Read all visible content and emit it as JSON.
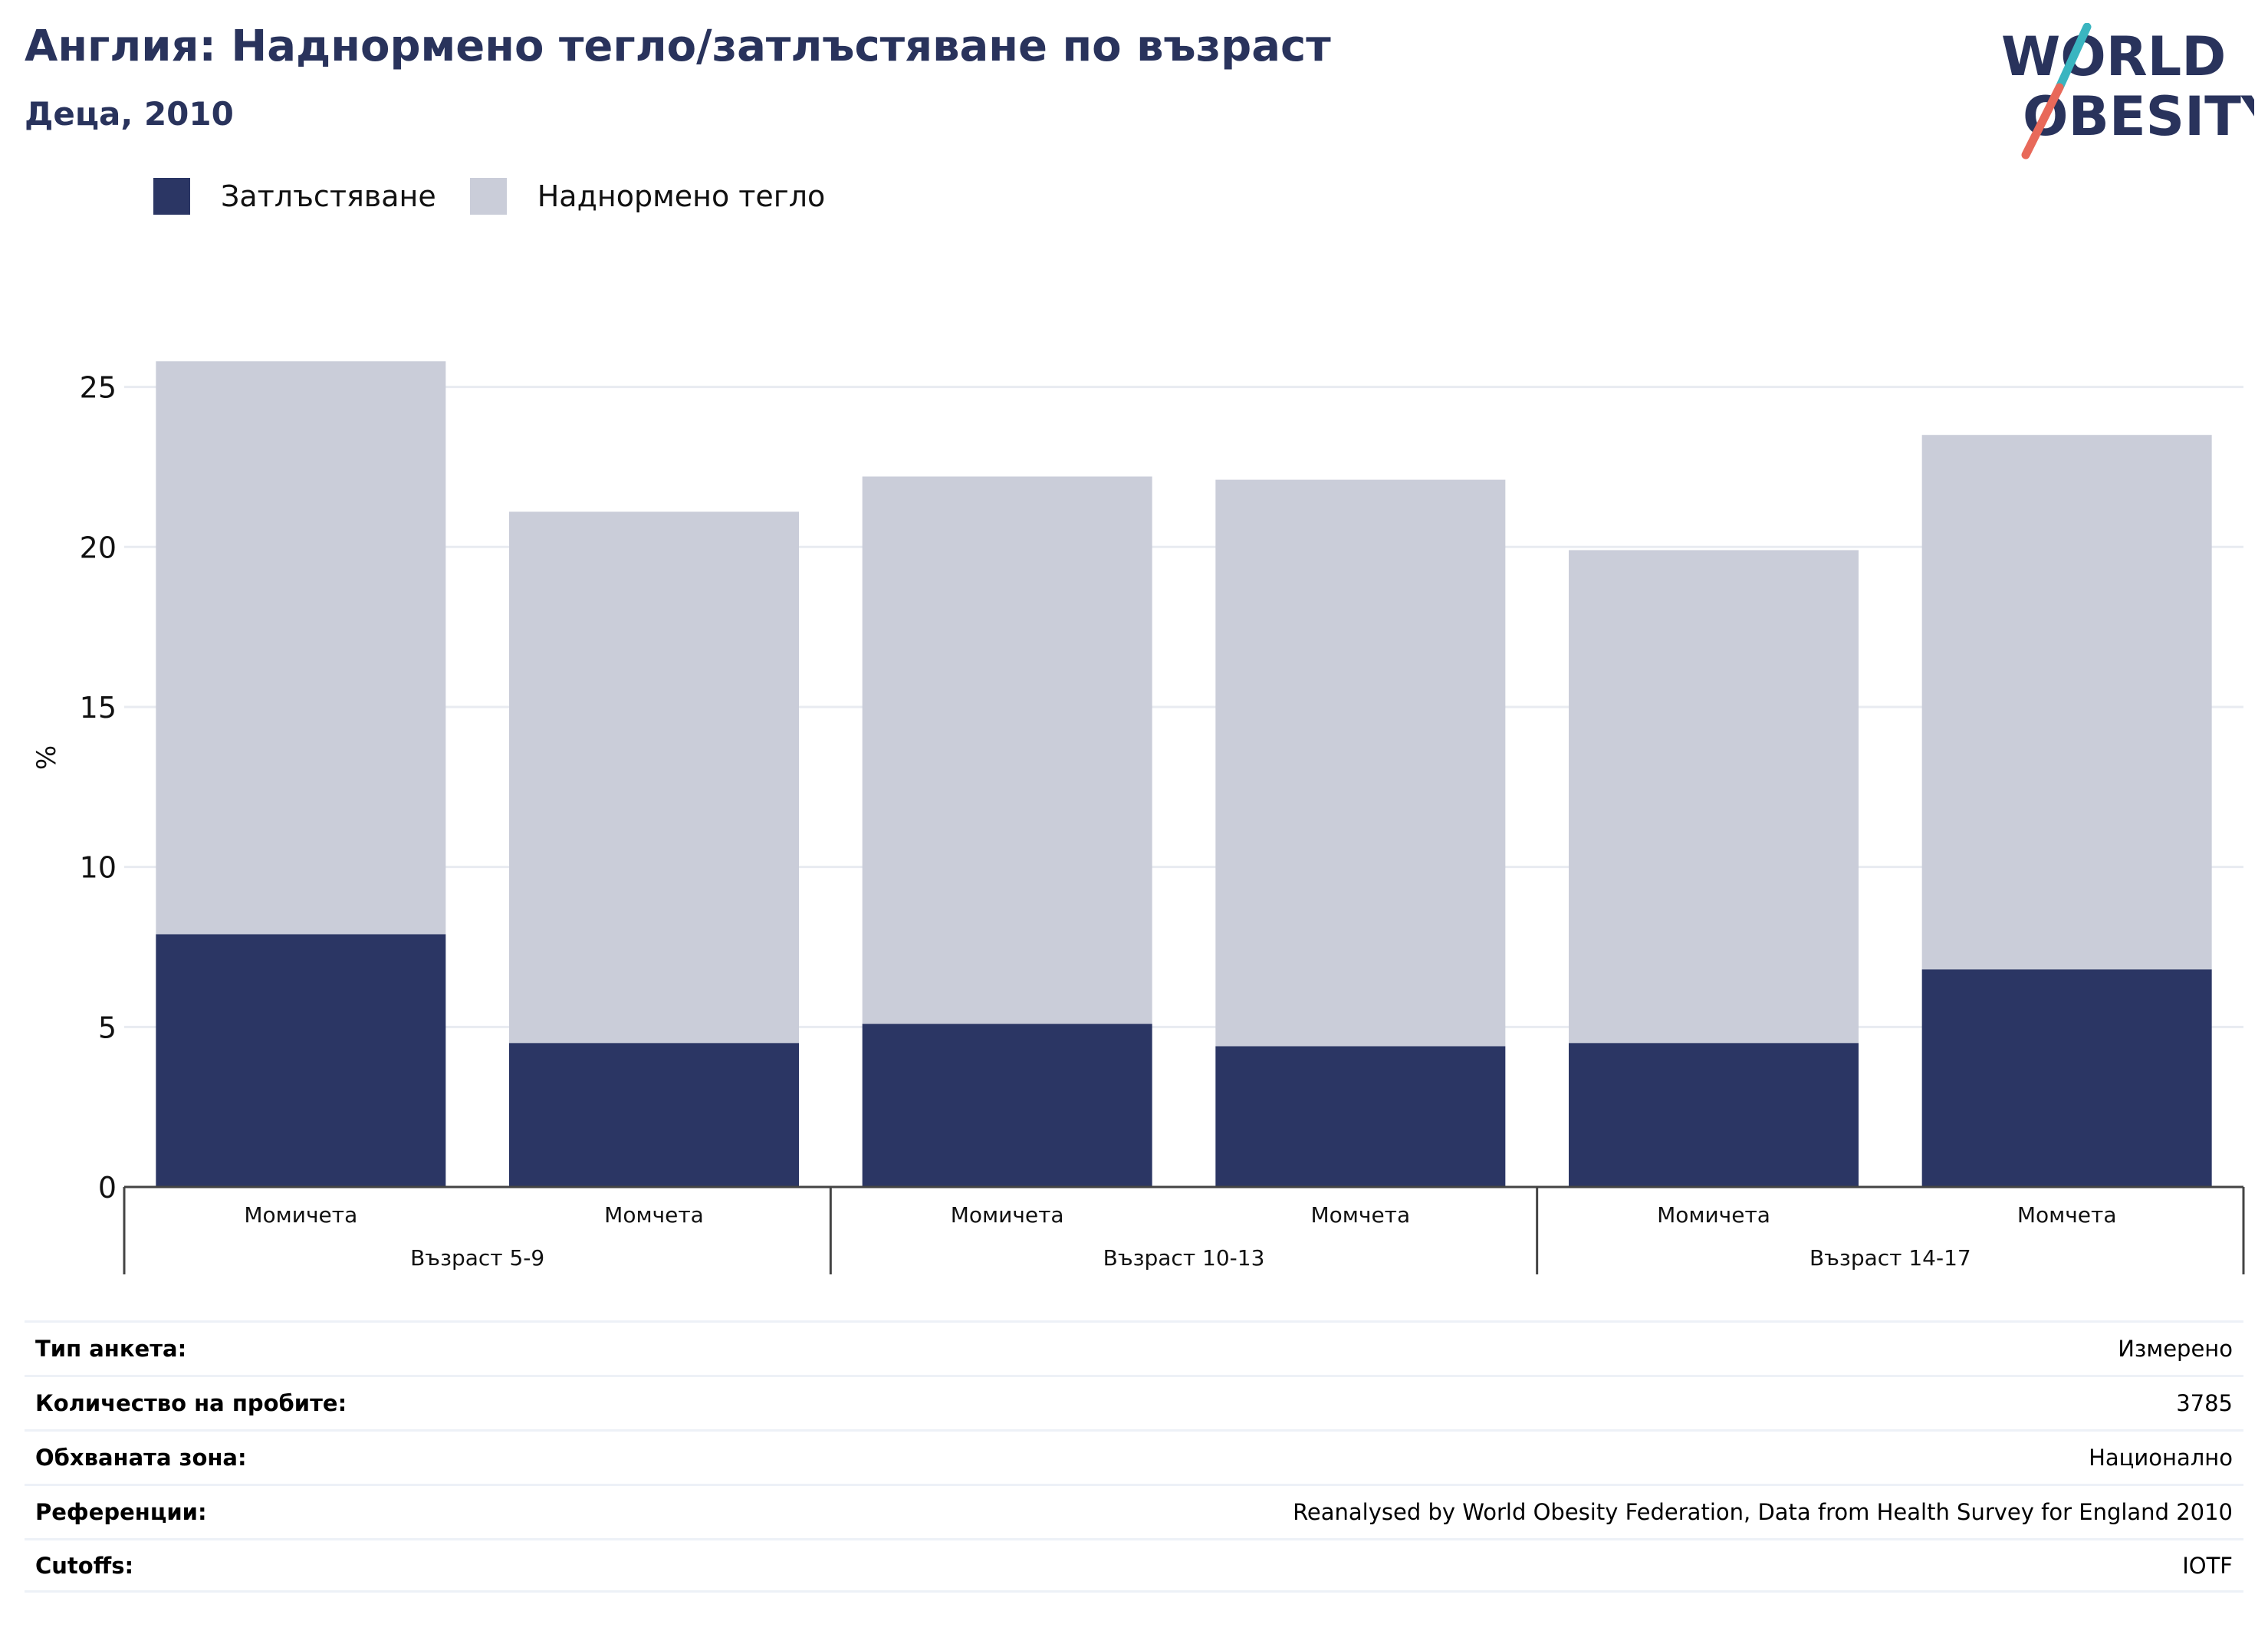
{
  "header": {
    "title": "Англия: Наднормено тегло/затлъстяване по възраст",
    "subtitle": "Деца, 2010"
  },
  "logo": {
    "line1": "WORLD",
    "line2": "OBESITY",
    "colors": {
      "text": "#29335c",
      "slash_top": "#3ab5c0",
      "slash_bottom": "#e8695a"
    }
  },
  "legend": [
    {
      "label": "Затлъстяване",
      "color": "#2b3664"
    },
    {
      "label": "Наднормено тегло",
      "color": "#cacdd9"
    }
  ],
  "chart_data": {
    "type": "bar",
    "stacked": true,
    "ylabel": "%",
    "ylim": [
      0,
      26.5
    ],
    "yticks": [
      0,
      5,
      10,
      15,
      20,
      25
    ],
    "grid": true,
    "legend_position": "top-left",
    "categories": [
      "Момичета",
      "Момчета",
      "Момичета",
      "Момчета",
      "Момичета",
      "Момчета"
    ],
    "groups": [
      {
        "label": "Възраст 5-9",
        "categories": [
          0,
          1
        ]
      },
      {
        "label": "Възраст 10-13",
        "categories": [
          2,
          3
        ]
      },
      {
        "label": "Възраст 14-17",
        "categories": [
          4,
          5
        ]
      }
    ],
    "series": [
      {
        "name": "Затлъстяване",
        "color": "#2b3664",
        "values": [
          7.9,
          4.5,
          5.1,
          4.4,
          4.5,
          6.8
        ]
      },
      {
        "name": "Наднормено тегло",
        "color": "#cacdd9",
        "values": [
          17.9,
          16.6,
          17.1,
          17.7,
          15.4,
          16.7
        ]
      }
    ]
  },
  "info": [
    {
      "label": "Тип анкета:",
      "value": "Измерено"
    },
    {
      "label": "Количество на пробите:",
      "value": "3785"
    },
    {
      "label": "Обхваната зона:",
      "value": "Национално"
    },
    {
      "label": "Референции:",
      "value": "Reanalysed by World Obesity Federation, Data from Health Survey for England 2010"
    },
    {
      "label": "Cutoffs:",
      "value": "IOTF"
    }
  ]
}
